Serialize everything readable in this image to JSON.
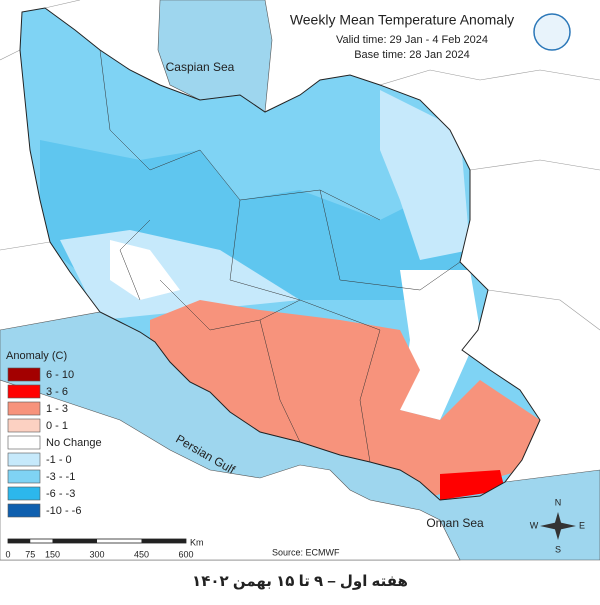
{
  "header": {
    "title": "Weekly Mean Temperature Anomaly",
    "valid_time": "Valid time: 29 Jan - 4 Feb 2024",
    "base_time": "Base time: 28 Jan 2024"
  },
  "legend": {
    "title": "Anomaly (C)",
    "items": [
      {
        "label": "6 - 10",
        "color": "#a30000"
      },
      {
        "label": "3 - 6",
        "color": "#ff0000"
      },
      {
        "label": "1 - 3",
        "color": "#f7937c"
      },
      {
        "label": "0 - 1",
        "color": "#fcd1c2"
      },
      {
        "label": "No Change",
        "color": "#ffffff"
      },
      {
        "label": "-1 - 0",
        "color": "#c6e9fb"
      },
      {
        "label": "-3 - -1",
        "color": "#7fd3f4"
      },
      {
        "label": "-6 - -3",
        "color": "#2cb7ec"
      },
      {
        "label": "-10 - -6",
        "color": "#0f5fae"
      }
    ]
  },
  "labels": {
    "caspian": "Caspian Sea",
    "persian_gulf": "Persian Gulf",
    "oman_sea": "Oman Sea"
  },
  "scale_bar": {
    "unit": "Km",
    "ticks": [
      0,
      75,
      150,
      300,
      450,
      600
    ]
  },
  "source": "Source: ECMWF",
  "compass": {
    "n": "N",
    "e": "E",
    "s": "S",
    "w": "W"
  },
  "caption": "هفته اول – ۹ تا ۱۵ بهمن ۱۴۰۲"
}
